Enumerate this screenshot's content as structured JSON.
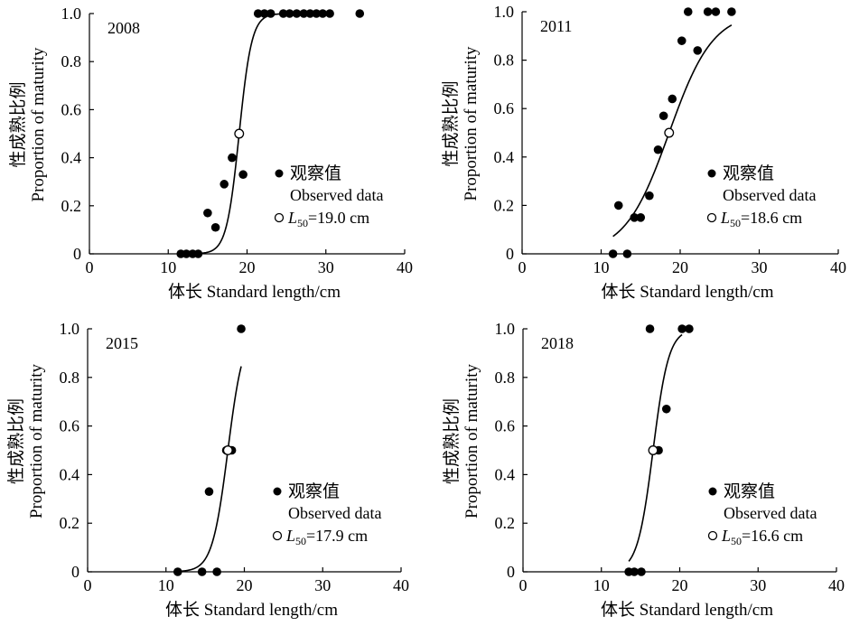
{
  "chart_data": [
    {
      "type": "scatter",
      "panel_label": "2008",
      "xlabel": "体长 Standard length/cm",
      "ylabel_cn": "性成熟比例",
      "ylabel_en": "Proportion of maturity",
      "xlim": [
        0,
        40
      ],
      "ylim": [
        0,
        1.0
      ],
      "xticks": [
        "0",
        "10",
        "20",
        "30",
        "40"
      ],
      "yticks": [
        "0",
        "0.2",
        "0.4",
        "0.6",
        "0.8",
        "1.0"
      ],
      "legend": {
        "observed_cn": "观察值",
        "observed_en": "Observed data",
        "l50_sym": "L",
        "l50_sub": "50",
        "l50_value": "=19.0 cm"
      },
      "l50": 19.0,
      "slope": 1.25,
      "curve_range": [
        11.5,
        29.5
      ],
      "observed": [
        {
          "x": 11.6,
          "y": 0
        },
        {
          "x": 12.3,
          "y": 0
        },
        {
          "x": 13.1,
          "y": 0
        },
        {
          "x": 13.8,
          "y": 0
        },
        {
          "x": 15.0,
          "y": 0.17
        },
        {
          "x": 16.0,
          "y": 0.11
        },
        {
          "x": 17.1,
          "y": 0.29
        },
        {
          "x": 18.1,
          "y": 0.4
        },
        {
          "x": 19.5,
          "y": 0.33
        },
        {
          "x": 21.4,
          "y": 1.0
        },
        {
          "x": 22.2,
          "y": 1.0
        },
        {
          "x": 23.0,
          "y": 1.0
        },
        {
          "x": 24.6,
          "y": 1.0
        },
        {
          "x": 25.4,
          "y": 1.0
        },
        {
          "x": 26.3,
          "y": 1.0
        },
        {
          "x": 27.2,
          "y": 1.0
        },
        {
          "x": 28.0,
          "y": 1.0
        },
        {
          "x": 28.8,
          "y": 1.0
        },
        {
          "x": 29.6,
          "y": 1.0
        },
        {
          "x": 30.5,
          "y": 1.0
        },
        {
          "x": 34.3,
          "y": 1.0
        }
      ]
    },
    {
      "type": "scatter",
      "panel_label": "2011",
      "xlabel": "体长 Standard length/cm",
      "ylabel_cn": "性成熟比例",
      "ylabel_en": "Proportion of maturity",
      "xlim": [
        0,
        40
      ],
      "ylim": [
        0,
        1.0
      ],
      "xticks": [
        "0",
        "10",
        "20",
        "30",
        "40"
      ],
      "yticks": [
        "0",
        "0.2",
        "0.4",
        "0.6",
        "0.8",
        "1.0"
      ],
      "legend": {
        "observed_cn": "观察值",
        "observed_en": "Observed data",
        "l50_sym": "L",
        "l50_sub": "50",
        "l50_value": "=18.6 cm"
      },
      "l50": 18.6,
      "slope": 0.36,
      "curve_range": [
        11.5,
        26.5
      ],
      "observed": [
        {
          "x": 11.5,
          "y": 0
        },
        {
          "x": 12.2,
          "y": 0.2
        },
        {
          "x": 13.3,
          "y": 0
        },
        {
          "x": 14.2,
          "y": 0.15
        },
        {
          "x": 15.0,
          "y": 0.15
        },
        {
          "x": 16.1,
          "y": 0.24
        },
        {
          "x": 17.2,
          "y": 0.43
        },
        {
          "x": 17.9,
          "y": 0.57
        },
        {
          "x": 19.0,
          "y": 0.64
        },
        {
          "x": 20.2,
          "y": 0.88
        },
        {
          "x": 21.0,
          "y": 1.0
        },
        {
          "x": 22.2,
          "y": 0.84
        },
        {
          "x": 23.5,
          "y": 1.0
        },
        {
          "x": 24.5,
          "y": 1.0
        },
        {
          "x": 26.5,
          "y": 1.0
        }
      ]
    },
    {
      "type": "scatter",
      "panel_label": "2015",
      "xlabel": "体长 Standard length/cm",
      "ylabel_cn": "性成熟比例",
      "ylabel_en": "Proportion of maturity",
      "xlim": [
        0,
        40
      ],
      "ylim": [
        0,
        1.0
      ],
      "xticks": [
        "0",
        "10",
        "20",
        "30",
        "40"
      ],
      "yticks": [
        "0",
        "0.2",
        "0.4",
        "0.6",
        "0.8",
        "1.0"
      ],
      "legend": {
        "observed_cn": "观察值",
        "observed_en": "Observed data",
        "l50_sym": "L",
        "l50_sub": "50",
        "l50_value": "=17.9 cm"
      },
      "l50": 17.9,
      "slope": 1.0,
      "curve_range": [
        11.3,
        19.6
      ],
      "observed": [
        {
          "x": 11.5,
          "y": 0
        },
        {
          "x": 14.6,
          "y": 0
        },
        {
          "x": 15.5,
          "y": 0.33
        },
        {
          "x": 16.5,
          "y": 0
        },
        {
          "x": 17.7,
          "y": 0.5
        },
        {
          "x": 18.4,
          "y": 0.5
        },
        {
          "x": 19.6,
          "y": 1.0
        }
      ]
    },
    {
      "type": "scatter",
      "panel_label": "2018",
      "xlabel": "体长 Standard length/cm",
      "ylabel_cn": "性成熟比例",
      "ylabel_en": "Proportion of maturity",
      "xlim": [
        0,
        40
      ],
      "ylim": [
        0,
        1.0
      ],
      "xticks": [
        "0",
        "10",
        "20",
        "30",
        "40"
      ],
      "yticks": [
        "0",
        "0.2",
        "0.4",
        "0.6",
        "0.8",
        "1.0"
      ],
      "legend": {
        "observed_cn": "观察值",
        "observed_en": "Observed data",
        "l50_sym": "L",
        "l50_sub": "50",
        "l50_value": "=16.6 cm"
      },
      "l50": 16.6,
      "slope": 1.0,
      "curve_range": [
        13.5,
        20.3
      ],
      "observed": [
        {
          "x": 13.5,
          "y": 0
        },
        {
          "x": 14.2,
          "y": 0
        },
        {
          "x": 15.1,
          "y": 0
        },
        {
          "x": 16.2,
          "y": 1.0
        },
        {
          "x": 17.3,
          "y": 0.5
        },
        {
          "x": 18.3,
          "y": 0.67
        },
        {
          "x": 20.3,
          "y": 1.0
        },
        {
          "x": 21.2,
          "y": 1.0
        }
      ]
    }
  ]
}
